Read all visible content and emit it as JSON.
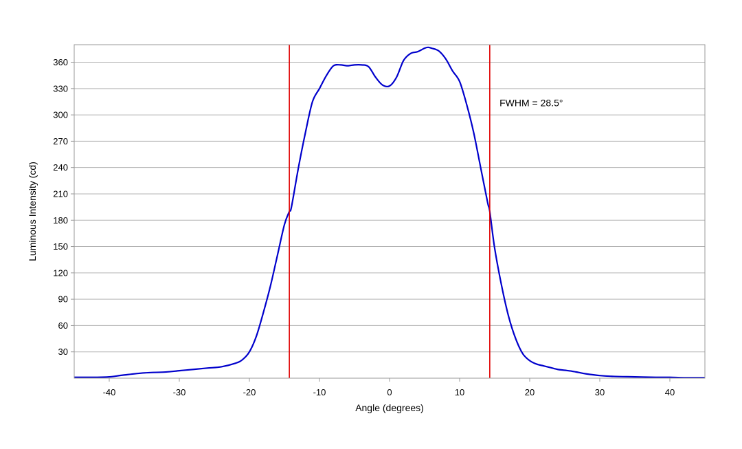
{
  "chart_data": {
    "type": "line",
    "xlabel": "Angle (degrees)",
    "ylabel": "Luminous Intensity (cd)",
    "xlim": [
      -45,
      45
    ],
    "ylim": [
      0,
      380
    ],
    "x_ticks": [
      -40,
      -30,
      -20,
      -10,
      0,
      10,
      20,
      30,
      40
    ],
    "y_ticks": [
      30,
      60,
      90,
      120,
      150,
      180,
      210,
      240,
      270,
      300,
      330,
      360
    ],
    "grid": "horizontal",
    "series": [
      {
        "color": "#0000cc",
        "x": [
          -45,
          -42,
          -40,
          -38,
          -35,
          -32,
          -30,
          -28,
          -26,
          -24,
          -22,
          -21,
          -20,
          -19,
          -18,
          -17,
          -16,
          -15,
          -14.3,
          -14,
          -13,
          -12,
          -11,
          -10,
          -9,
          -8,
          -7,
          -6,
          -5,
          -4,
          -3,
          -2,
          -1,
          0,
          1,
          2,
          3,
          4,
          5,
          5.5,
          6,
          7,
          8,
          9,
          10,
          11,
          12,
          13,
          14,
          14.3,
          15,
          16,
          17,
          18,
          19,
          20,
          21,
          22,
          23,
          24,
          25,
          26,
          27,
          28,
          30,
          32,
          35,
          38,
          40,
          42,
          45
        ],
        "y": [
          1,
          1,
          1.5,
          3.5,
          6,
          7,
          8.5,
          10,
          11.5,
          13,
          17,
          21,
          30,
          48,
          75,
          105,
          140,
          175,
          190,
          195,
          240,
          280,
          315,
          330,
          345,
          356,
          357,
          356,
          357,
          357,
          355,
          343,
          334,
          333,
          343,
          362,
          370,
          372,
          376,
          377,
          376,
          373,
          364,
          350,
          338,
          312,
          280,
          240,
          200,
          190,
          148,
          105,
          70,
          45,
          28,
          20,
          16,
          14,
          12,
          10,
          9,
          8,
          6.5,
          5,
          3,
          2,
          1.5,
          1,
          1,
          0.5,
          0.5
        ]
      },
      {
        "color": "#e00000",
        "x": [
          -14.3,
          -14.3
        ],
        "y": [
          0,
          380
        ]
      },
      {
        "color": "#e00000",
        "x": [
          14.3,
          14.3
        ],
        "y": [
          0,
          380
        ]
      }
    ],
    "annotations": [
      {
        "text": "FWHM = 28.5°",
        "x": 15.7,
        "y": 310
      }
    ]
  }
}
